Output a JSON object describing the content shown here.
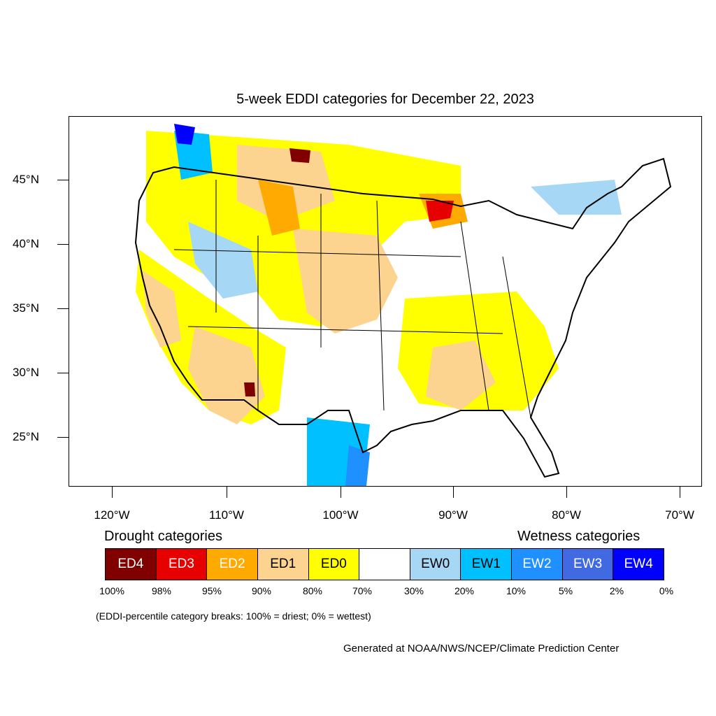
{
  "title": "5-week EDDI categories for December 22, 2023",
  "map": {
    "lat_labels": [
      "45°N",
      "40°N",
      "35°N",
      "30°N",
      "25°N"
    ],
    "lon_labels": [
      "120°W",
      "110°W",
      "100°W",
      "90°W",
      "80°W",
      "70°W"
    ],
    "colors": {
      "ED4": "#800000",
      "ED3": "#e60000",
      "ED2": "#ffaa00",
      "ED1": "#fcd38f",
      "ED0": "#ffff00",
      "neutral": "#ffffff",
      "EW0": "#a6d8f5",
      "EW1": "#00c0ff",
      "EW2": "#1e90ff",
      "EW3": "#4169e1",
      "EW4": "#0000ff"
    }
  },
  "legend": {
    "drought_label": "Drought categories",
    "wetness_label": "Wetness categories",
    "categories": [
      {
        "label": "ED4",
        "color": "#800000",
        "text_color": "#ffffff"
      },
      {
        "label": "ED3",
        "color": "#e60000",
        "text_color": "#ffffff"
      },
      {
        "label": "ED2",
        "color": "#ffaa00",
        "text_color": "#ffffff"
      },
      {
        "label": "ED1",
        "color": "#fcd38f",
        "text_color": "#000000"
      },
      {
        "label": "ED0",
        "color": "#ffff00",
        "text_color": "#000000"
      },
      {
        "label": "",
        "color": "#ffffff",
        "text_color": "#000000"
      },
      {
        "label": "EW0",
        "color": "#a6d8f5",
        "text_color": "#000000"
      },
      {
        "label": "EW1",
        "color": "#00c0ff",
        "text_color": "#000000"
      },
      {
        "label": "EW2",
        "color": "#1e90ff",
        "text_color": "#ffffff"
      },
      {
        "label": "EW3",
        "color": "#4169e1",
        "text_color": "#ffffff"
      },
      {
        "label": "EW4",
        "color": "#0000ff",
        "text_color": "#ffffff"
      }
    ],
    "percentiles": [
      "100%",
      "98%",
      "95%",
      "90%",
      "80%",
      "70%",
      "30%",
      "20%",
      "10%",
      "5%",
      "2%",
      "0%"
    ]
  },
  "note": "(EDDI-percentile category breaks: 100% = driest; 0% = wettest)",
  "credit": "Generated at NOAA/NWS/NCEP/Climate Prediction Center"
}
